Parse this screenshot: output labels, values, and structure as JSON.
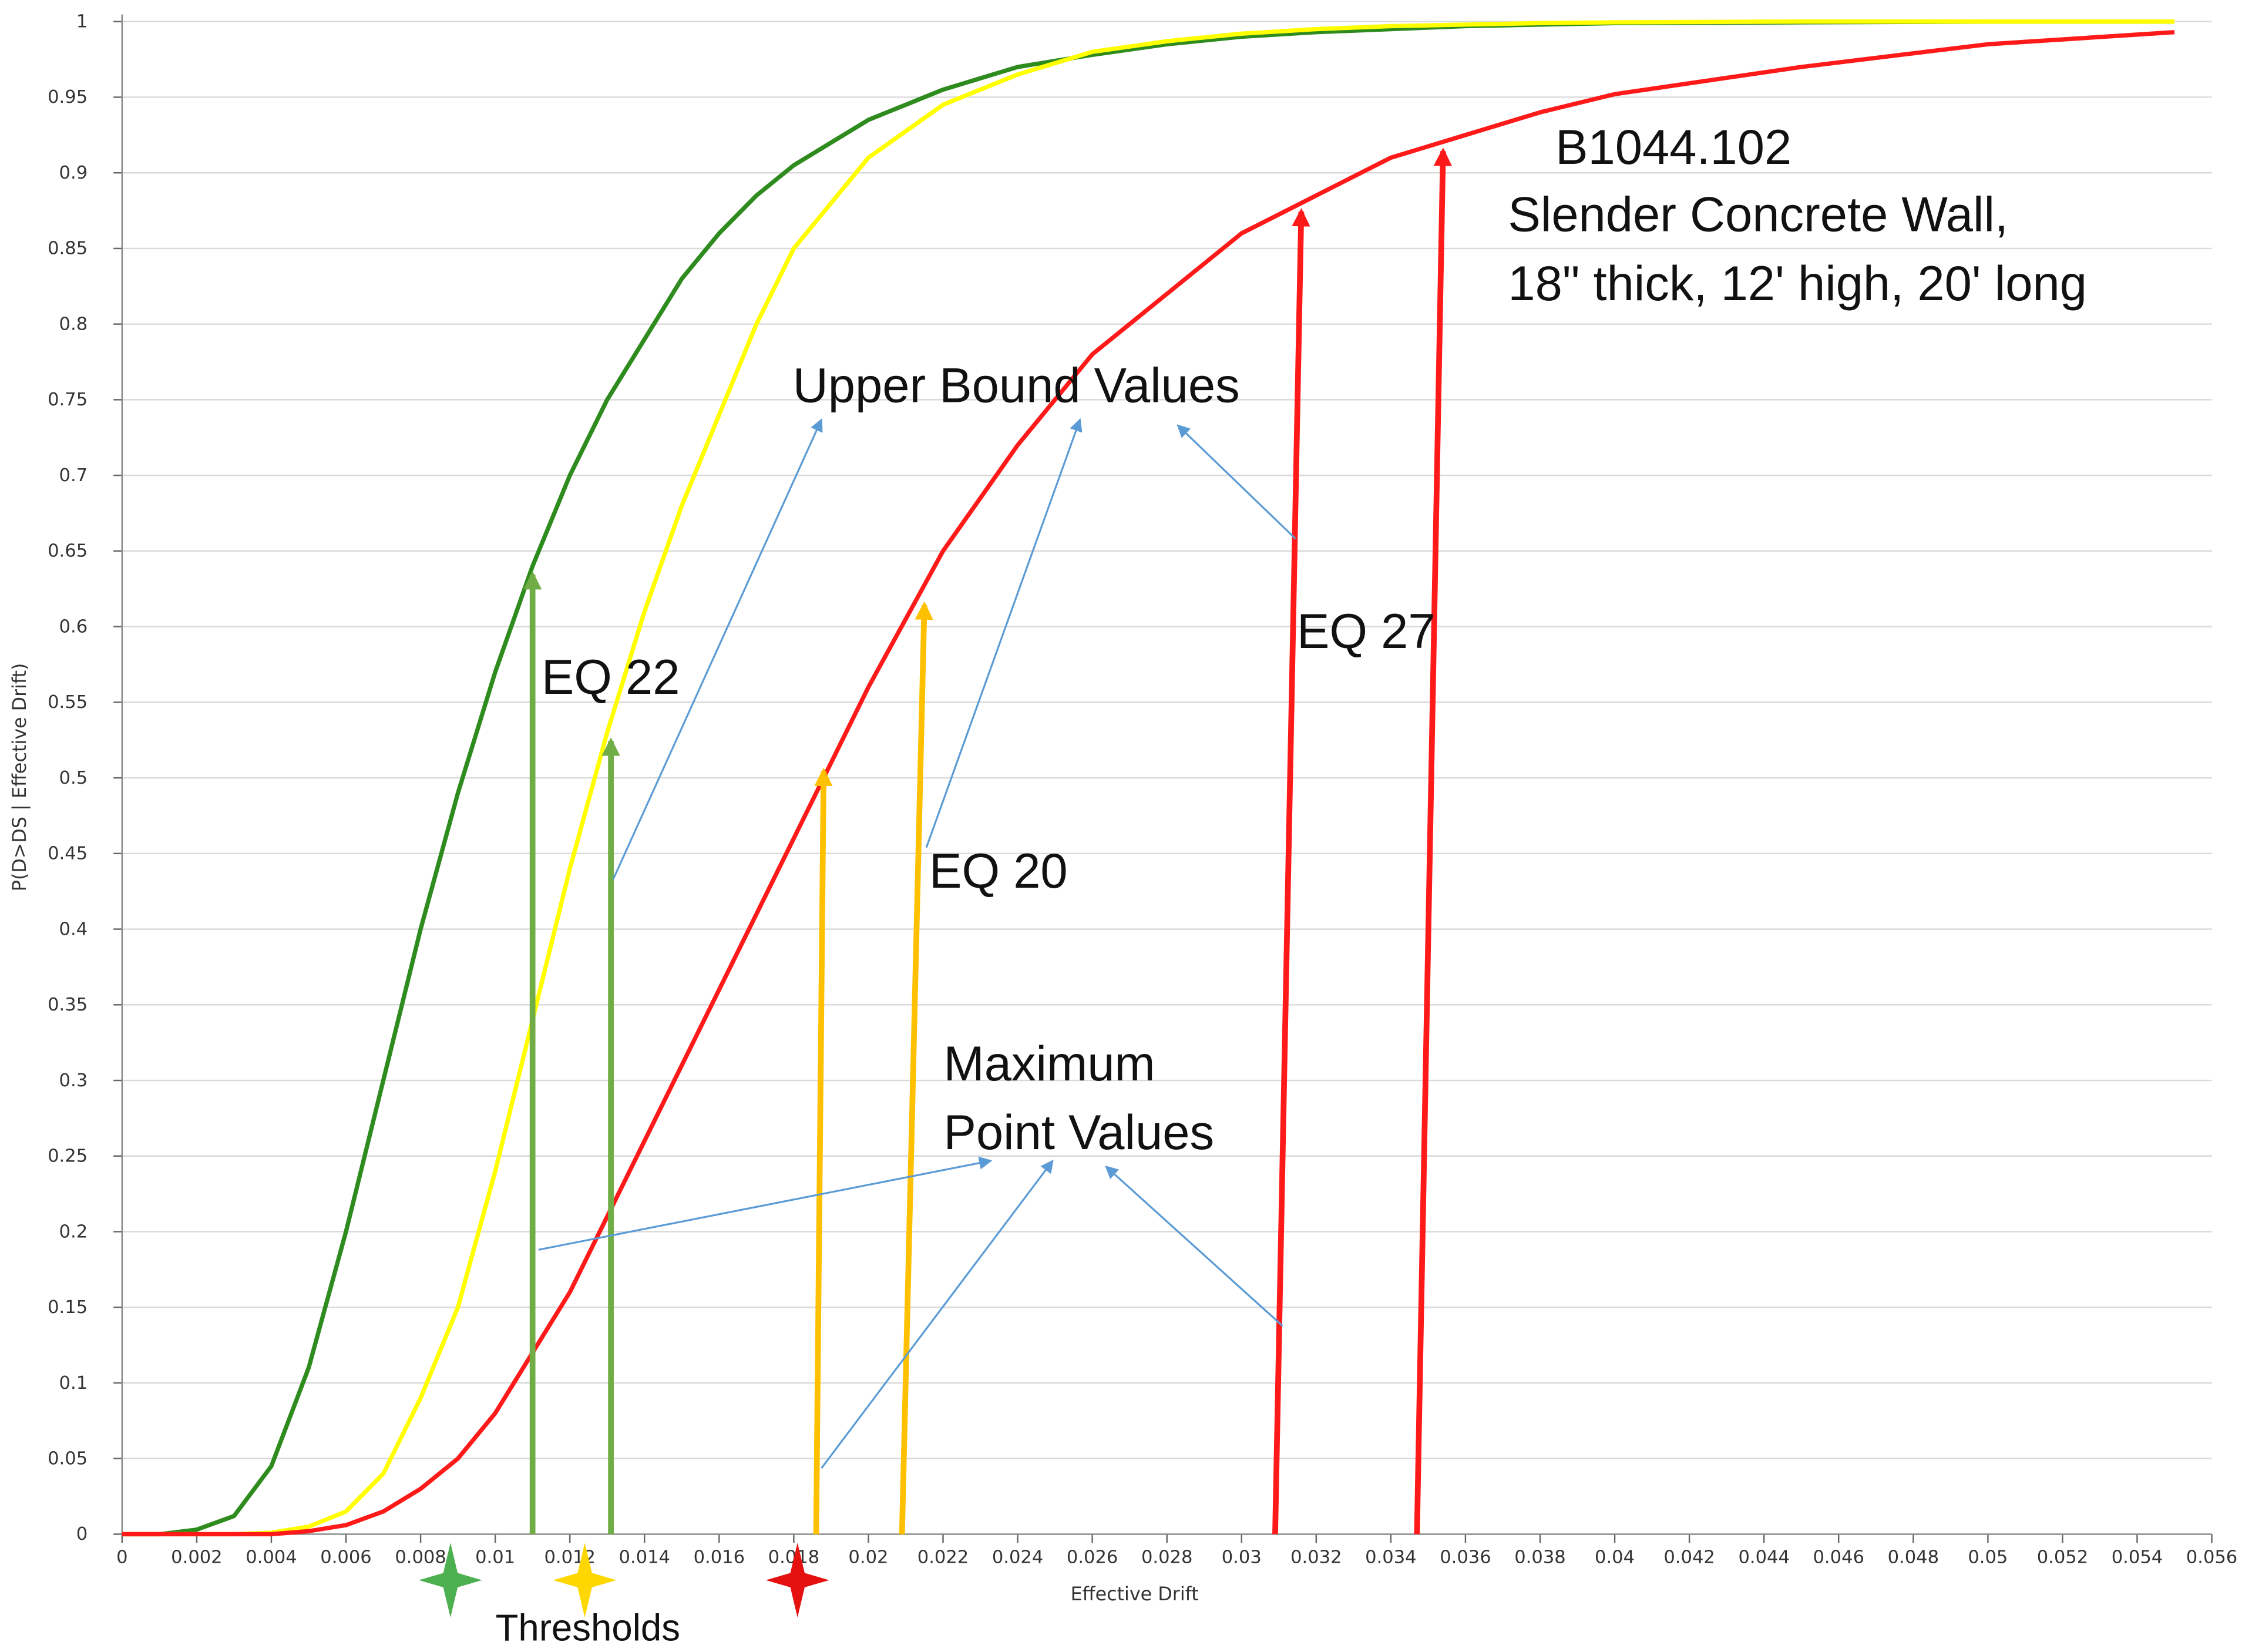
{
  "chart_data": {
    "type": "line",
    "x_label": "Effective Drift",
    "y_label": "P(D>DS | Effective Drift)",
    "x": [
      0,
      0.001,
      0.002,
      0.003,
      0.004,
      0.005,
      0.006,
      0.007,
      0.008,
      0.009,
      0.01,
      0.011,
      0.012,
      0.013,
      0.014,
      0.015,
      0.016,
      0.017,
      0.018,
      0.019,
      0.02,
      0.022,
      0.024,
      0.026,
      0.028,
      0.03,
      0.032,
      0.034,
      0.036,
      0.038,
      0.04,
      0.045,
      0.05,
      0.055
    ],
    "series": [
      {
        "color": "#2e8b1e",
        "values": [
          0,
          0,
          0.003,
          0.012,
          0.045,
          0.11,
          0.2,
          0.3,
          0.4,
          0.49,
          0.57,
          0.64,
          0.7,
          0.75,
          0.79,
          0.83,
          0.86,
          0.885,
          0.905,
          0.92,
          0.935,
          0.955,
          0.97,
          0.978,
          0.985,
          0.99,
          0.993,
          0.995,
          0.997,
          0.998,
          0.999,
          0.9995,
          1,
          1
        ]
      },
      {
        "color": "#ffff00",
        "values": [
          0,
          0,
          0,
          0,
          0.001,
          0.005,
          0.015,
          0.04,
          0.09,
          0.15,
          0.24,
          0.34,
          0.44,
          0.53,
          0.61,
          0.68,
          0.74,
          0.8,
          0.85,
          0.88,
          0.91,
          0.945,
          0.965,
          0.98,
          0.987,
          0.992,
          0.995,
          0.997,
          0.998,
          0.999,
          0.9995,
          1,
          1,
          1
        ]
      },
      {
        "color": "#ff1a1a",
        "values": [
          0,
          0,
          0,
          0,
          0,
          0.002,
          0.006,
          0.015,
          0.03,
          0.05,
          0.08,
          0.12,
          0.16,
          0.21,
          0.26,
          0.31,
          0.36,
          0.41,
          0.46,
          0.51,
          0.56,
          0.65,
          0.72,
          0.78,
          0.82,
          0.86,
          0.885,
          0.91,
          0.925,
          0.94,
          0.952,
          0.97,
          0.985,
          0.993
        ]
      }
    ],
    "xlim": [
      0,
      0.056
    ],
    "ylim": [
      0,
      1
    ],
    "xticks": [
      0,
      0.002,
      0.004,
      0.006,
      0.008,
      0.01,
      0.012,
      0.014,
      0.016,
      0.018,
      0.02,
      0.022,
      0.024,
      0.026,
      0.028,
      0.03,
      0.032,
      0.034,
      0.036,
      0.038,
      0.04,
      0.042,
      0.044,
      0.046,
      0.048,
      0.05,
      0.052,
      0.054,
      0.056
    ],
    "yticks": [
      0,
      0.05,
      0.1,
      0.15,
      0.2,
      0.25,
      0.3,
      0.35,
      0.4,
      0.45,
      0.5,
      0.55,
      0.6,
      0.65,
      0.7,
      0.75,
      0.8,
      0.85,
      0.9,
      0.95,
      1
    ],
    "grid": true,
    "arrows": [
      {
        "x0": 0.011,
        "x1": 0.011,
        "y": 0.64,
        "color": "#70ad47"
      },
      {
        "x0": 0.0131,
        "x1": 0.0131,
        "y": 0.53,
        "color": "#70ad47"
      },
      {
        "x0": 0.0186,
        "x1": 0.0188,
        "y": 0.51,
        "color": "#ffc000"
      },
      {
        "x0": 0.0209,
        "x1": 0.0215,
        "y": 0.62,
        "color": "#ffc000"
      },
      {
        "x0": 0.0309,
        "x1": 0.0316,
        "y": 0.88,
        "color": "#ff1a1a"
      },
      {
        "x0": 0.0347,
        "x1": 0.0354,
        "y": 0.92,
        "color": "#ff1a1a"
      }
    ],
    "thresholds": {
      "label": "Thresholds",
      "markers": [
        {
          "x": 0.0088,
          "color": "#4caf50"
        },
        {
          "x": 0.0124,
          "color": "#ffd700"
        },
        {
          "x": 0.0181,
          "color": "#e51010"
        }
      ]
    },
    "annotations": {
      "component_id": "B1044.102",
      "component_line1": "Slender Concrete Wall,",
      "component_line2": "18\" thick, 12' high, 20' long",
      "upper_bound": "Upper Bound Values",
      "eq22": "EQ 22",
      "eq20": "EQ 20",
      "eq27": "EQ 27",
      "max_line1": "Maximum",
      "max_line2": "Point Values"
    }
  }
}
